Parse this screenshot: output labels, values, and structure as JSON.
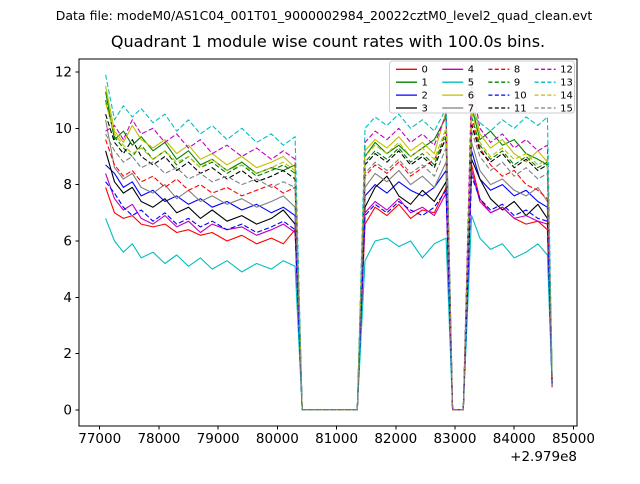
{
  "header": {
    "data_file": "Data file: modeM0/AS1C04_001T01_9000002984_20022cztM0_level2_quad_clean.evt"
  },
  "chart_data": {
    "type": "line",
    "title": "Quadrant 1 module wise count rates with 100.0s bins.",
    "xlabel": "",
    "ylabel": "",
    "x_offset_label": "+2.979e8",
    "xlim": [
      76650,
      85060
    ],
    "ylim": [
      -0.57,
      12.46
    ],
    "xticks": [
      77000,
      78000,
      79000,
      80000,
      81000,
      82000,
      83000,
      84000,
      85000
    ],
    "yticks": [
      0,
      2,
      4,
      6,
      8,
      10,
      12
    ],
    "grid": false,
    "legend_position": "upper right",
    "legend_columns": 4,
    "x": [
      77100,
      77250,
      77400,
      77550,
      77700,
      77900,
      78100,
      78300,
      78500,
      78700,
      78900,
      79150,
      79400,
      79650,
      79900,
      80100,
      80300,
      80420,
      81350,
      81480,
      81650,
      81850,
      82050,
      82250,
      82450,
      82650,
      82850,
      82960,
      83140,
      83280,
      83420,
      83600,
      83800,
      84000,
      84200,
      84400,
      84560,
      84640
    ],
    "series": [
      {
        "label": "0",
        "color": "#ff0000",
        "linestyle": "solid",
        "values": [
          7.9,
          7.0,
          6.8,
          6.9,
          6.6,
          6.5,
          6.6,
          6.3,
          6.4,
          6.2,
          6.3,
          6.0,
          6.2,
          5.9,
          6.1,
          5.9,
          6.4,
          0,
          0,
          6.6,
          7.2,
          6.9,
          7.3,
          6.8,
          7.1,
          7.0,
          7.9,
          0,
          0,
          8.7,
          7.5,
          7.0,
          7.2,
          6.8,
          6.6,
          6.7,
          6.4,
          0.8
        ]
      },
      {
        "label": "1",
        "color": "#008000",
        "linestyle": "solid",
        "values": [
          11.3,
          9.6,
          9.9,
          9.4,
          9.7,
          9.2,
          9.5,
          8.9,
          9.2,
          8.7,
          8.9,
          8.5,
          8.8,
          8.4,
          8.6,
          8.5,
          8.7,
          0,
          0,
          9.0,
          9.5,
          9.1,
          9.4,
          9.0,
          9.3,
          9.6,
          10.4,
          0,
          0,
          10.8,
          9.6,
          9.9,
          9.4,
          9.6,
          9.1,
          8.9,
          8.7,
          1.1
        ]
      },
      {
        "label": "2",
        "color": "#0000ff",
        "linestyle": "solid",
        "values": [
          8.7,
          8.4,
          7.9,
          8.1,
          7.6,
          7.8,
          7.4,
          7.6,
          7.3,
          7.5,
          7.2,
          7.4,
          7.1,
          7.3,
          7.0,
          7.2,
          6.9,
          0,
          0,
          7.6,
          8.0,
          7.7,
          8.1,
          7.8,
          7.6,
          7.9,
          8.5,
          0,
          0,
          9.2,
          8.2,
          7.8,
          8.0,
          7.6,
          7.8,
          7.4,
          7.2,
          1.0
        ]
      },
      {
        "label": "3",
        "color": "#000000",
        "linestyle": "solid",
        "values": [
          9.2,
          8.1,
          7.7,
          7.9,
          7.4,
          7.2,
          7.5,
          7.0,
          7.2,
          6.8,
          7.1,
          6.7,
          6.9,
          6.6,
          6.8,
          7.1,
          6.6,
          0,
          0,
          7.2,
          7.9,
          8.3,
          7.6,
          7.3,
          7.8,
          7.4,
          8.1,
          0,
          0,
          8.9,
          8.2,
          7.5,
          7.1,
          7.4,
          6.9,
          7.3,
          6.8,
          0.9
        ]
      },
      {
        "label": "4",
        "color": "#bf00bf",
        "linestyle": "solid",
        "values": [
          8.4,
          7.5,
          7.1,
          7.3,
          6.8,
          6.6,
          6.9,
          6.5,
          6.7,
          6.3,
          6.6,
          6.4,
          6.5,
          6.2,
          6.4,
          6.6,
          6.3,
          0,
          0,
          7.0,
          7.4,
          7.1,
          7.5,
          7.0,
          7.2,
          6.9,
          7.7,
          0,
          0,
          8.5,
          7.4,
          7.0,
          7.2,
          6.8,
          6.9,
          6.7,
          6.6,
          1.0
        ]
      },
      {
        "label": "5",
        "color": "#00bfbf",
        "linestyle": "solid",
        "values": [
          6.8,
          6.0,
          5.6,
          5.9,
          5.4,
          5.6,
          5.2,
          5.5,
          5.1,
          5.4,
          5.0,
          5.3,
          4.9,
          5.2,
          5.0,
          5.3,
          5.1,
          0,
          0,
          5.3,
          6.0,
          6.1,
          5.8,
          6.0,
          5.4,
          5.9,
          6.1,
          0,
          0,
          6.9,
          6.1,
          5.7,
          5.9,
          5.4,
          5.6,
          5.9,
          5.5,
          0.9
        ]
      },
      {
        "label": "6",
        "color": "#bfbf00",
        "linestyle": "solid",
        "values": [
          11.5,
          9.9,
          9.5,
          10.1,
          9.6,
          9.3,
          9.6,
          9.1,
          9.4,
          8.9,
          9.1,
          8.7,
          9.0,
          8.6,
          8.8,
          9.0,
          8.6,
          0,
          0,
          9.2,
          9.6,
          9.3,
          9.7,
          9.2,
          9.5,
          9.1,
          10.6,
          0,
          0,
          11.1,
          9.8,
          9.3,
          9.6,
          9.1,
          8.8,
          9.2,
          8.8,
          1.2
        ]
      },
      {
        "label": "7",
        "color": "#808080",
        "linestyle": "solid",
        "values": [
          10.3,
          8.6,
          8.2,
          8.4,
          7.9,
          7.7,
          8.0,
          7.5,
          7.8,
          7.4,
          7.6,
          7.3,
          7.5,
          7.2,
          7.4,
          7.6,
          7.2,
          0,
          0,
          7.9,
          8.4,
          8.1,
          8.5,
          8.0,
          8.3,
          7.9,
          8.8,
          0,
          0,
          9.5,
          8.5,
          8.0,
          8.2,
          7.8,
          7.6,
          7.9,
          7.4,
          1.0
        ]
      },
      {
        "label": "8",
        "color": "#ff0000",
        "linestyle": "dashed",
        "values": [
          9.6,
          8.7,
          8.3,
          8.5,
          8.1,
          8.3,
          7.9,
          8.2,
          7.8,
          8.0,
          7.7,
          7.9,
          7.6,
          7.8,
          8.0,
          7.7,
          7.9,
          0,
          0,
          8.3,
          8.7,
          8.4,
          8.8,
          8.3,
          8.6,
          8.9,
          9.6,
          0,
          0,
          10.2,
          9.3,
          8.7,
          8.3,
          8.5,
          8.0,
          7.8,
          7.5,
          1.1
        ]
      },
      {
        "label": "9",
        "color": "#008000",
        "linestyle": "dashed",
        "values": [
          11.0,
          9.7,
          9.3,
          9.0,
          9.4,
          8.9,
          9.2,
          8.7,
          9.0,
          8.6,
          8.8,
          8.4,
          8.7,
          8.3,
          8.5,
          8.7,
          8.4,
          0,
          0,
          8.8,
          9.2,
          8.9,
          9.3,
          8.8,
          9.1,
          8.7,
          9.9,
          0,
          0,
          10.4,
          9.4,
          8.9,
          9.2,
          8.7,
          9.0,
          8.6,
          8.8,
          1.0
        ]
      },
      {
        "label": "10",
        "color": "#0000ff",
        "linestyle": "dashed",
        "values": [
          8.1,
          7.7,
          7.2,
          6.9,
          7.1,
          6.7,
          7.0,
          6.6,
          6.8,
          6.5,
          6.7,
          6.4,
          6.6,
          6.3,
          6.5,
          6.7,
          6.4,
          0,
          0,
          6.9,
          7.3,
          7.0,
          7.4,
          7.1,
          6.9,
          7.2,
          7.8,
          0,
          0,
          8.3,
          7.5,
          7.1,
          7.3,
          6.9,
          7.1,
          6.8,
          6.7,
          0.9
        ]
      },
      {
        "label": "11",
        "color": "#000000",
        "linestyle": "dashed",
        "values": [
          10.5,
          9.5,
          9.1,
          9.6,
          9.0,
          8.7,
          9.0,
          8.5,
          8.8,
          8.4,
          8.6,
          8.2,
          8.5,
          8.1,
          8.3,
          8.5,
          8.2,
          0,
          0,
          8.7,
          9.1,
          8.8,
          9.2,
          8.7,
          9.0,
          8.6,
          9.7,
          0,
          0,
          10.1,
          9.2,
          8.8,
          9.1,
          8.6,
          8.9,
          8.5,
          8.7,
          1.1
        ]
      },
      {
        "label": "12",
        "color": "#bf00bf",
        "linestyle": "dashed",
        "values": [
          9.9,
          10.1,
          9.6,
          10.3,
          9.8,
          10.0,
          9.5,
          9.8,
          9.3,
          9.6,
          9.1,
          9.4,
          9.0,
          9.3,
          8.9,
          9.2,
          8.9,
          0,
          0,
          9.5,
          9.9,
          9.6,
          10.0,
          9.5,
          9.8,
          9.4,
          10.5,
          0,
          0,
          11.7,
          10.0,
          9.5,
          9.8,
          9.3,
          9.6,
          9.2,
          9.4,
          1.2
        ]
      },
      {
        "label": "13",
        "color": "#00bfbf",
        "linestyle": "dashed",
        "values": [
          11.9,
          10.3,
          10.8,
          10.4,
          10.7,
          10.2,
          10.5,
          9.9,
          10.3,
          9.8,
          10.1,
          9.6,
          10.0,
          9.5,
          9.8,
          9.4,
          9.7,
          0,
          0,
          10.0,
          10.4,
          10.1,
          10.5,
          10.0,
          10.3,
          9.9,
          10.7,
          0,
          0,
          10.5,
          10.2,
          9.9,
          10.3,
          10.0,
          10.4,
          10.1,
          10.4,
          1.3
        ]
      },
      {
        "label": "14",
        "color": "#bfbf00",
        "linestyle": "dashed",
        "values": [
          10.9,
          9.8,
          9.4,
          9.1,
          9.3,
          8.9,
          9.2,
          8.8,
          9.0,
          8.6,
          8.9,
          8.5,
          8.7,
          8.4,
          8.6,
          8.8,
          8.5,
          0,
          0,
          9.0,
          9.4,
          9.1,
          9.5,
          9.0,
          9.3,
          8.9,
          10.0,
          0,
          0,
          10.6,
          9.5,
          9.0,
          9.3,
          8.9,
          9.1,
          8.7,
          8.9,
          1.2
        ]
      },
      {
        "label": "15",
        "color": "#808080",
        "linestyle": "dashed",
        "values": [
          9.8,
          9.2,
          8.8,
          9.0,
          8.6,
          8.8,
          8.4,
          8.6,
          8.2,
          8.4,
          8.1,
          8.3,
          8.0,
          8.2,
          7.9,
          8.1,
          7.9,
          0,
          0,
          8.4,
          8.8,
          8.5,
          8.9,
          8.4,
          8.7,
          8.3,
          9.3,
          0,
          0,
          9.9,
          9.0,
          8.5,
          8.8,
          8.3,
          8.6,
          8.2,
          8.4,
          1.0
        ]
      }
    ]
  }
}
